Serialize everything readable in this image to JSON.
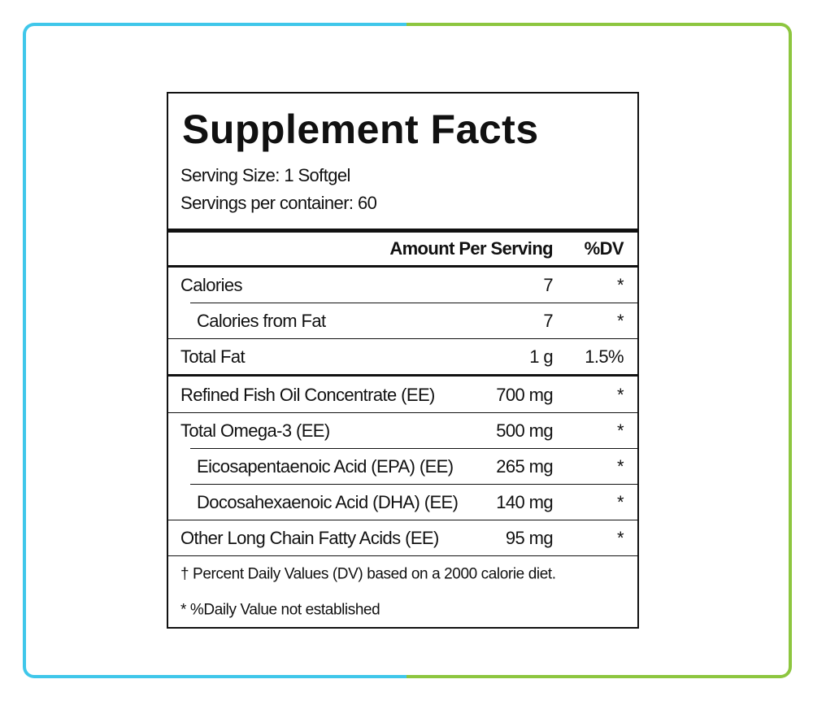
{
  "label": {
    "title": "Supplement Facts",
    "serving_size": "Serving Size: 1 Softgel",
    "servings_per_container": "Servings per container:  60",
    "header": {
      "amount": "Amount Per Serving",
      "dv": "%DV"
    },
    "sections": [
      {
        "rows": [
          {
            "name": "Calories",
            "amount": "7",
            "dv": "*"
          },
          {
            "name": "Calories from Fat",
            "amount": "7",
            "dv": "*",
            "indent": true
          },
          {
            "name": "Total Fat",
            "amount": "1 g",
            "dv": "1.5%"
          }
        ]
      },
      {
        "rows": [
          {
            "name": "Refined Fish Oil Concentrate (EE)",
            "amount": "700 mg",
            "dv": "*"
          },
          {
            "name": "Total Omega-3 (EE)",
            "amount": "500 mg",
            "dv": "*"
          },
          {
            "name": "Eicosapentaenoic Acid (EPA) (EE)",
            "amount": "265 mg",
            "dv": "*",
            "indent": true
          },
          {
            "name": "Docosahexaenoic Acid (DHA) (EE)",
            "amount": "140 mg",
            "dv": "*",
            "indent": true
          },
          {
            "name": "Other Long Chain Fatty Acids (EE)",
            "amount": "95 mg",
            "dv": "*"
          }
        ]
      }
    ],
    "footnotes": [
      "† Percent Daily Values (DV) based on a 2000 calorie diet.",
      "* %Daily Value not established"
    ]
  }
}
